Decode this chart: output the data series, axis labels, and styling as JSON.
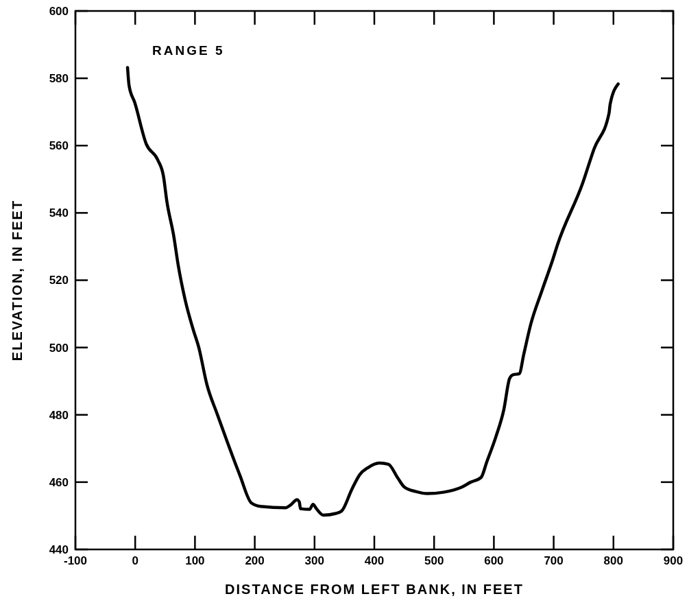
{
  "chart_data": {
    "type": "line",
    "xlabel": "DISTANCE FROM LEFT BANK, IN FEET",
    "ylabel": "ELEVATION, IN FEET",
    "annotations": [
      "RANGE 5"
    ],
    "xlim": [
      -100,
      900
    ],
    "xticks": [
      -100,
      0,
      100,
      200,
      300,
      400,
      500,
      600,
      700,
      800,
      900
    ],
    "ylim": [
      440,
      600
    ],
    "yticks": [
      440,
      460,
      480,
      500,
      520,
      540,
      560,
      580,
      600
    ],
    "grid": false,
    "marker": "none",
    "line_style": "solid",
    "series": [
      {
        "color": "#000000",
        "x": [
          -12.8,
          -10.2,
          -0.6,
          18.5,
          37.6,
          47.2,
          52.9,
          64.3,
          72,
          83.5,
          96.9,
          106.4,
          119.8,
          137,
          152.3,
          175.2,
          194.4,
          209.6,
          251.7,
          259.2,
          270.7,
          274.5,
          276.5,
          291.7,
          297.5,
          303.2,
          314.7,
          335.8,
          345.3,
          362.5,
          375.9,
          389.3,
          408.4,
          423.7,
          439,
          450.5,
          469.6,
          488.7,
          515.4,
          546,
          561.3,
          578.6,
          588.1,
          603.4,
          616.7,
          626.3,
          632,
          642.4,
          650,
          661.5,
          680.6,
          697.9,
          706.5,
          748.6,
          767.7,
          792.6,
          794.5,
          807.9
        ],
        "values": [
          583.2,
          577.8,
          572.7,
          560.5,
          555.8,
          551,
          543.5,
          533.3,
          524.4,
          514.2,
          505.4,
          500,
          489.1,
          480.3,
          472.8,
          462,
          453.8,
          452.8,
          452.4,
          453.1,
          454.8,
          454.1,
          452.1,
          451.9,
          453.4,
          452.1,
          450.2,
          450.7,
          451.4,
          457.9,
          462.3,
          464.3,
          465.7,
          465.3,
          461.3,
          458.5,
          457.2,
          456.6,
          457,
          458.5,
          460,
          461.4,
          466,
          473.5,
          481.6,
          490.8,
          491.9,
          492.2,
          498,
          506.8,
          517,
          525.8,
          530.6,
          548.9,
          559.1,
          569.6,
          572.3,
          578.3
        ]
      }
    ]
  }
}
